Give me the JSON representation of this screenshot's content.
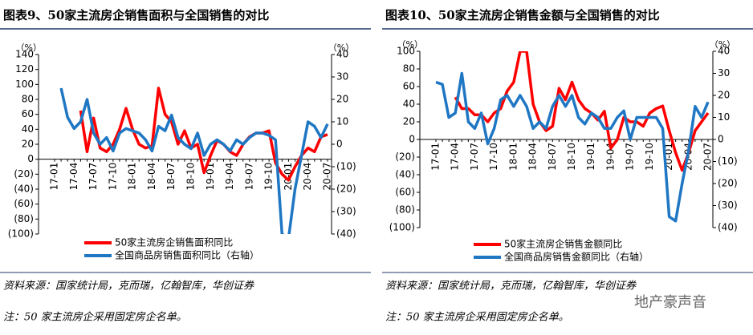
{
  "chart_data": [
    {
      "type": "line",
      "title": "图表9、50家主流房企销售面积与全国销售的对比",
      "y_unit": "（%）",
      "y2_unit": "（%）",
      "categories": [
        "17-01",
        null,
        null,
        "17-04",
        null,
        null,
        "17-07",
        null,
        null,
        "17-10",
        null,
        null,
        "18-01",
        null,
        null,
        "18-04",
        null,
        null,
        "18-07",
        null,
        null,
        "18-10",
        null,
        null,
        "19-01",
        null,
        null,
        "19-04",
        null,
        null,
        "19-07",
        null,
        null,
        "19-10",
        null,
        null,
        "20-01",
        null,
        null,
        "20-04",
        null,
        null,
        "20-07"
      ],
      "series": [
        {
          "name": "50家主流房企销售面积同比",
          "color": "#ff0000",
          "values": [
            null,
            null,
            null,
            null,
            65,
            10,
            55,
            15,
            10,
            20,
            40,
            68,
            40,
            20,
            15,
            18,
            95,
            60,
            50,
            20,
            38,
            15,
            20,
            -18,
            5,
            25,
            20,
            10,
            5,
            20,
            30,
            35,
            35,
            38,
            -5,
            -20,
            -28,
            -10,
            5,
            15,
            10,
            30,
            33
          ]
        },
        {
          "name": "全国商品房销售面积同比（右轴）",
          "color": "#1f77c4",
          "axis": "y2",
          "values": [
            null,
            25,
            12,
            7,
            10,
            20,
            5,
            0,
            3,
            -3,
            5,
            7,
            6,
            5,
            2,
            -3,
            8,
            6,
            13,
            3,
            0,
            -2,
            5,
            -5,
            0,
            2,
            0,
            -3,
            2,
            0,
            3,
            5,
            5,
            4,
            2,
            -40,
            -42,
            -20,
            -5,
            10,
            8,
            3,
            9
          ]
        }
      ],
      "ylim": [
        -100,
        140
      ],
      "yticks": [
        {
          "value": -100,
          "label": "(100)"
        },
        {
          "value": -80,
          "label": "(80)"
        },
        {
          "value": -60,
          "label": "(60)"
        },
        {
          "value": -40,
          "label": "(40)"
        },
        {
          "value": -20,
          "label": "(20)"
        },
        0,
        20,
        40,
        60,
        80,
        100,
        120,
        140
      ],
      "y2lim": [
        -40,
        40
      ],
      "y2ticks": [
        {
          "value": -40,
          "label": "(40)"
        },
        {
          "value": -30,
          "label": "(30)"
        },
        {
          "value": -20,
          "label": "(20)"
        },
        {
          "value": -10,
          "label": "(10)"
        },
        0,
        10,
        20,
        30,
        40
      ],
      "source": "资料来源：国家统计局，克而瑞，亿翰智库，华创证券",
      "note": "注：50 家主流房企采用固定房企名单。"
    },
    {
      "type": "line",
      "title": "图表10、50家主流房企销售金额与全国销售的对比",
      "y_unit": "（%）",
      "y2_unit": "（%）",
      "categories": [
        "17-01",
        null,
        null,
        "17-04",
        null,
        null,
        "17-07",
        null,
        null,
        "17-10",
        null,
        null,
        "18-01",
        null,
        null,
        "18-04",
        null,
        null,
        "18-07",
        null,
        null,
        "18-10",
        null,
        null,
        "19-01",
        null,
        null,
        "19-04",
        null,
        null,
        "19-07",
        null,
        null,
        "19-10",
        null,
        null,
        "20-01",
        null,
        null,
        "20-04",
        null,
        null,
        "20-07"
      ],
      "series": [
        {
          "name": "50家主流房企销售金额同比",
          "color": "#ff0000",
          "values": [
            null,
            null,
            null,
            48,
            35,
            35,
            28,
            28,
            20,
            30,
            35,
            55,
            65,
            100,
            100,
            40,
            20,
            10,
            15,
            58,
            45,
            65,
            45,
            35,
            30,
            22,
            32,
            -10,
            0,
            25,
            20,
            20,
            15,
            30,
            35,
            38,
            10,
            -15,
            -35,
            -15,
            10,
            20,
            30
          ]
        },
        {
          "name": "全国商品房销售金额同比（右轴）",
          "color": "#1f77c4",
          "axis": "y2",
          "values": [
            26,
            25,
            10,
            12,
            30,
            8,
            5,
            12,
            -2,
            5,
            18,
            20,
            15,
            20,
            15,
            5,
            8,
            5,
            15,
            20,
            15,
            20,
            10,
            7,
            12,
            10,
            5,
            5,
            10,
            13,
            0,
            10,
            10,
            10,
            10,
            5,
            -35,
            -37,
            -20,
            -5,
            15,
            10,
            17
          ]
        }
      ],
      "ylim": [
        -100,
        100
      ],
      "yticks": [
        {
          "value": -100,
          "label": "(100)"
        },
        {
          "value": -80,
          "label": "(80)"
        },
        {
          "value": -60,
          "label": "(60)"
        },
        {
          "value": -40,
          "label": "(40)"
        },
        {
          "value": -20,
          "label": "(20)"
        },
        0,
        20,
        40,
        60,
        80,
        100
      ],
      "y2lim": [
        -40,
        40
      ],
      "y2ticks": [
        {
          "value": -40,
          "label": "(40)"
        },
        {
          "value": -30,
          "label": "(30)"
        },
        {
          "value": -20,
          "label": "(20)"
        },
        {
          "value": -10,
          "label": "(10)"
        },
        0,
        10,
        20,
        30,
        40
      ],
      "source": "资料来源：国家统计局，克而瑞，亿翰智库，华创证券",
      "note": "注：50 家主流房企采用固定房企名单。"
    }
  ],
  "watermark": "地产豪声音"
}
